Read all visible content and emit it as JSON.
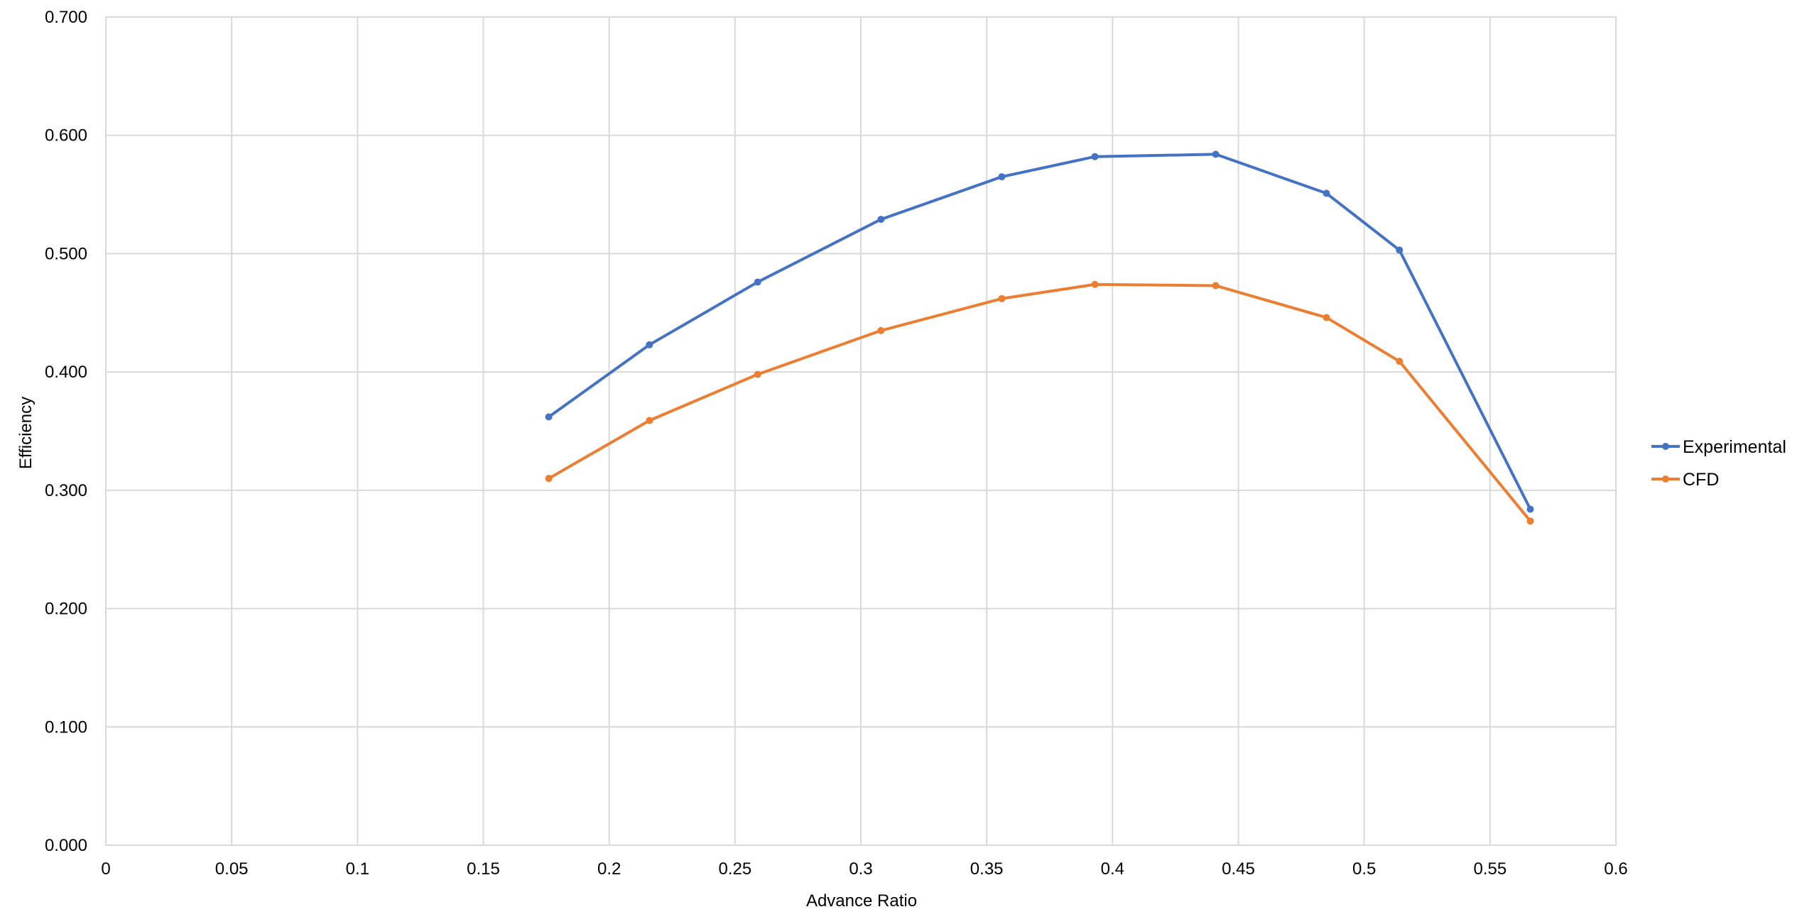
{
  "chart_data": {
    "type": "line",
    "xlabel": "Advance Ratio",
    "ylabel": "Efficiency",
    "xlim": [
      0,
      0.6
    ],
    "ylim": [
      0,
      0.7
    ],
    "x_ticks": [
      0,
      0.05,
      0.1,
      0.15,
      0.2,
      0.25,
      0.3,
      0.35,
      0.4,
      0.45,
      0.5,
      0.55,
      0.6
    ],
    "x_tick_labels": [
      "0",
      "0.05",
      "0.1",
      "0.15",
      "0.2",
      "0.25",
      "0.3",
      "0.35",
      "0.4",
      "0.45",
      "0.5",
      "0.55",
      "0.6"
    ],
    "y_ticks": [
      0,
      0.1,
      0.2,
      0.3,
      0.4,
      0.5,
      0.6,
      0.7
    ],
    "y_tick_labels": [
      "0.000",
      "0.100",
      "0.200",
      "0.300",
      "0.400",
      "0.500",
      "0.600",
      "0.700"
    ],
    "grid": true,
    "legend_position": "right",
    "x": [
      0.176,
      0.216,
      0.259,
      0.308,
      0.356,
      0.393,
      0.441,
      0.485,
      0.514,
      0.566
    ],
    "series": [
      {
        "name": "Experimental",
        "color": "#4472c4",
        "values": [
          0.362,
          0.423,
          0.476,
          0.529,
          0.565,
          0.582,
          0.584,
          0.551,
          0.503,
          0.284
        ]
      },
      {
        "name": "CFD",
        "color": "#ed7d31",
        "values": [
          0.31,
          0.359,
          0.398,
          0.435,
          0.462,
          0.474,
          0.473,
          0.446,
          0.409,
          0.274
        ]
      }
    ]
  }
}
